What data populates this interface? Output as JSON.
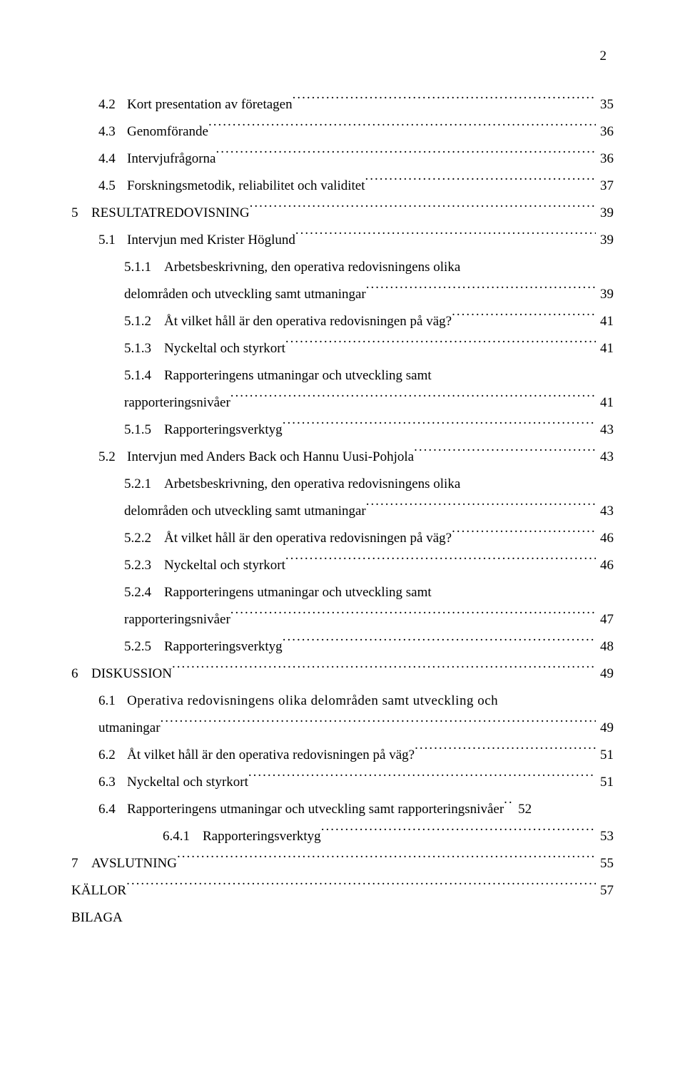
{
  "page_number": "2",
  "entries": [
    {
      "indent": 1,
      "num": "4.2",
      "label": "Kort presentation av företagen",
      "page": "35"
    },
    {
      "indent": 1,
      "num": "4.3",
      "label": "Genomförande",
      "page": "36"
    },
    {
      "indent": 1,
      "num": "4.4",
      "label": "Intervjufrågorna",
      "page": "36"
    },
    {
      "indent": 1,
      "num": "4.5",
      "label": "Forskningsmetodik, reliabilitet och validitet",
      "page": "37"
    },
    {
      "indent": 0,
      "num": "5",
      "label": "RESULTATREDOVISNING",
      "page": "39"
    },
    {
      "indent": 1,
      "num": "5.1",
      "label": "Intervjun med Krister Höglund",
      "page": "39"
    },
    {
      "indent": 2,
      "num": "5.1.1",
      "label": "Arbetsbeskrivning, den operativa redovisningens olika",
      "nopage": true
    },
    {
      "indent": 2,
      "cont": true,
      "label": "delområden och utveckling samt utmaningar",
      "page": "39"
    },
    {
      "indent": 2,
      "num": "5.1.2",
      "label": "Åt vilket håll är den operativa redovisningen på väg?",
      "page": "41"
    },
    {
      "indent": 2,
      "num": "5.1.3",
      "label": "Nyckeltal och styrkort",
      "page": "41"
    },
    {
      "indent": 2,
      "num": "5.1.4",
      "label": "Rapporteringens utmaningar och utveckling samt",
      "nopage": true
    },
    {
      "indent": 2,
      "cont": true,
      "label": "rapporteringsnivåer",
      "page": "41"
    },
    {
      "indent": 2,
      "num": "5.1.5",
      "label": "Rapporteringsverktyg",
      "page": "43"
    },
    {
      "indent": 1,
      "num": "5.2",
      "label": "Intervjun med Anders Back och Hannu Uusi-Pohjola",
      "page": "43"
    },
    {
      "indent": 2,
      "num": "5.2.1",
      "label": "Arbetsbeskrivning, den operativa redovisningens olika",
      "nopage": true
    },
    {
      "indent": 2,
      "cont": true,
      "label": "delområden och utveckling samt utmaningar",
      "page": "43"
    },
    {
      "indent": 2,
      "num": "5.2.2",
      "label": "Åt vilket håll är den operativa redovisningen på väg?",
      "page": "46"
    },
    {
      "indent": 2,
      "num": "5.2.3",
      "label": "Nyckeltal och styrkort",
      "page": "46"
    },
    {
      "indent": 2,
      "num": "5.2.4",
      "label": "Rapporteringens utmaningar och utveckling samt",
      "nopage": true
    },
    {
      "indent": 2,
      "cont": true,
      "label": "rapporteringsnivåer",
      "page": "47"
    },
    {
      "indent": 2,
      "num": "5.2.5",
      "label": "Rapporteringsverktyg",
      "page": "48"
    },
    {
      "indent": 0,
      "num": "6",
      "label": "DISKUSSION",
      "page": "49"
    },
    {
      "indent": 1,
      "num": "6.1",
      "label": "Operativa  redovisningens  olika  delområden  samt  utveckling  och",
      "nopage": true,
      "justify": true
    },
    {
      "indent": 1,
      "cont": true,
      "label": "utmaningar",
      "page": "49"
    },
    {
      "indent": 1,
      "num": "6.2",
      "label": "Åt vilket håll är den operativa redovisningen på väg?",
      "page": "51"
    },
    {
      "indent": 1,
      "num": "6.3",
      "label": "Nyckeltal och styrkort",
      "page": "51"
    },
    {
      "indent": 1,
      "num": "6.4",
      "label": "Rapporteringens utmaningar och utveckling samt rapporteringsnivåer",
      "page": "52",
      "dotgap": true
    },
    {
      "indent": 2,
      "num": "6.4.1",
      "label": "Rapporteringsverktyg",
      "page": "53",
      "shift": true
    },
    {
      "indent": 0,
      "num": "7",
      "label": "AVSLUTNING",
      "page": "55"
    },
    {
      "indent": 0,
      "num": "",
      "label": "KÄLLOR",
      "page": "57"
    },
    {
      "indent": 0,
      "num": "",
      "label": "BILAGA",
      "nopage": true
    }
  ]
}
